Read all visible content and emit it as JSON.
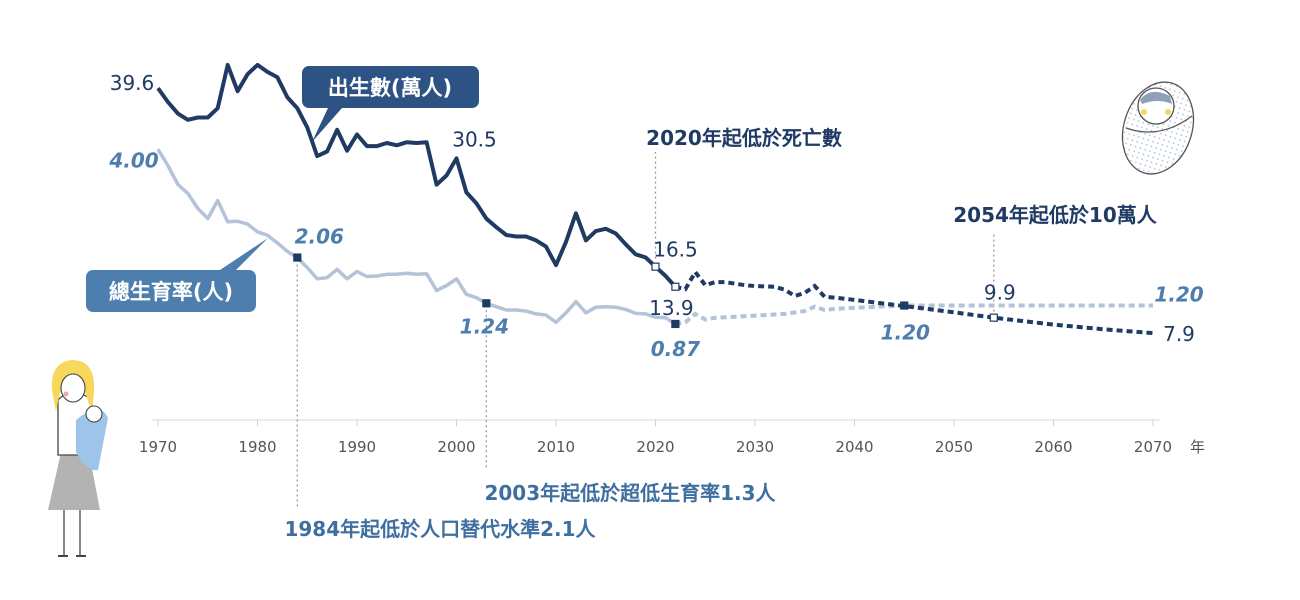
{
  "chart_data": {
    "type": "line",
    "xunit": "年",
    "xlim": [
      1970,
      2070
    ],
    "xticks": [
      1970,
      1980,
      1990,
      2000,
      2010,
      2020,
      2030,
      2040,
      2050,
      2060,
      2070
    ],
    "series": [
      {
        "name": "出生數(萬人)",
        "color": "#1f3a63",
        "actual": [
          [
            1970,
            39.6
          ],
          [
            1971,
            37.8
          ],
          [
            1972,
            36.3
          ],
          [
            1973,
            35.5
          ],
          [
            1974,
            35.8
          ],
          [
            1975,
            35.8
          ],
          [
            1976,
            37.0
          ],
          [
            1977,
            42.6
          ],
          [
            1978,
            39.2
          ],
          [
            1979,
            41.4
          ],
          [
            1980,
            42.6
          ],
          [
            1981,
            41.7
          ],
          [
            1982,
            41.0
          ],
          [
            1983,
            38.4
          ],
          [
            1984,
            37.0
          ],
          [
            1985,
            34.5
          ],
          [
            1986,
            30.8
          ],
          [
            1987,
            31.4
          ],
          [
            1988,
            34.2
          ],
          [
            1989,
            31.5
          ],
          [
            1990,
            33.6
          ],
          [
            1991,
            32.1
          ],
          [
            1992,
            32.1
          ],
          [
            1993,
            32.5
          ],
          [
            1994,
            32.2
          ],
          [
            1995,
            32.6
          ],
          [
            1996,
            32.5
          ],
          [
            1997,
            32.6
          ],
          [
            1998,
            27.1
          ],
          [
            1999,
            28.3
          ],
          [
            2000,
            30.5
          ],
          [
            2001,
            26.1
          ],
          [
            2002,
            24.7
          ],
          [
            2003,
            22.7
          ],
          [
            2004,
            21.6
          ],
          [
            2005,
            20.6
          ],
          [
            2006,
            20.4
          ],
          [
            2007,
            20.4
          ],
          [
            2008,
            19.9
          ],
          [
            2009,
            19.1
          ],
          [
            2010,
            16.7
          ],
          [
            2011,
            19.7
          ],
          [
            2012,
            23.4
          ],
          [
            2013,
            19.9
          ],
          [
            2014,
            21.1
          ],
          [
            2015,
            21.4
          ],
          [
            2016,
            20.8
          ],
          [
            2017,
            19.4
          ],
          [
            2018,
            18.1
          ],
          [
            2019,
            17.7
          ],
          [
            2020,
            16.5
          ],
          [
            2021,
            15.3
          ],
          [
            2022,
            13.9
          ]
        ],
        "projection": [
          [
            2022,
            13.9
          ],
          [
            2023,
            13.6
          ],
          [
            2024,
            15.8
          ],
          [
            2025,
            14.1
          ],
          [
            2026,
            14.5
          ],
          [
            2027,
            14.5
          ],
          [
            2028,
            14.3
          ],
          [
            2029,
            14.1
          ],
          [
            2030,
            14.0
          ],
          [
            2032,
            13.9
          ],
          [
            2033,
            13.5
          ],
          [
            2034,
            12.7
          ],
          [
            2035,
            13.1
          ],
          [
            2036,
            14.0
          ],
          [
            2037,
            12.6
          ],
          [
            2038,
            12.5
          ],
          [
            2040,
            12.2
          ],
          [
            2045,
            11.4
          ],
          [
            2050,
            10.6
          ],
          [
            2054,
            9.9
          ],
          [
            2060,
            9.0
          ],
          [
            2065,
            8.4
          ],
          [
            2070,
            7.9
          ]
        ]
      },
      {
        "name": "總生育率(人)",
        "color": "#b4c3d8",
        "actual": [
          [
            1970,
            4.0
          ],
          [
            1971,
            3.71
          ],
          [
            1972,
            3.37
          ],
          [
            1973,
            3.21
          ],
          [
            1974,
            2.94
          ],
          [
            1975,
            2.76
          ],
          [
            1976,
            3.08
          ],
          [
            1977,
            2.7
          ],
          [
            1978,
            2.71
          ],
          [
            1979,
            2.66
          ],
          [
            1980,
            2.52
          ],
          [
            1981,
            2.46
          ],
          [
            1982,
            2.32
          ],
          [
            1983,
            2.17
          ],
          [
            1984,
            2.06
          ],
          [
            1985,
            1.88
          ],
          [
            1986,
            1.68
          ],
          [
            1987,
            1.7
          ],
          [
            1988,
            1.85
          ],
          [
            1989,
            1.68
          ],
          [
            1990,
            1.81
          ],
          [
            1991,
            1.72
          ],
          [
            1992,
            1.73
          ],
          [
            1993,
            1.76
          ],
          [
            1994,
            1.76
          ],
          [
            1995,
            1.78
          ],
          [
            1996,
            1.76
          ],
          [
            1997,
            1.77
          ],
          [
            1998,
            1.47
          ],
          [
            1999,
            1.56
          ],
          [
            2000,
            1.68
          ],
          [
            2001,
            1.4
          ],
          [
            2002,
            1.34
          ],
          [
            2003,
            1.24
          ],
          [
            2004,
            1.18
          ],
          [
            2005,
            1.12
          ],
          [
            2006,
            1.12
          ],
          [
            2007,
            1.1
          ],
          [
            2008,
            1.05
          ],
          [
            2009,
            1.03
          ],
          [
            2010,
            0.9
          ],
          [
            2011,
            1.07
          ],
          [
            2012,
            1.27
          ],
          [
            2013,
            1.07
          ],
          [
            2014,
            1.17
          ],
          [
            2015,
            1.18
          ],
          [
            2016,
            1.17
          ],
          [
            2017,
            1.13
          ],
          [
            2018,
            1.06
          ],
          [
            2019,
            1.05
          ],
          [
            2020,
            0.99
          ],
          [
            2021,
            0.98
          ],
          [
            2022,
            0.87
          ]
        ],
        "projection": [
          [
            2022,
            0.87
          ],
          [
            2023,
            0.9
          ],
          [
            2024,
            1.05
          ],
          [
            2025,
            0.95
          ],
          [
            2026,
            0.98
          ],
          [
            2028,
            1.0
          ],
          [
            2030,
            1.02
          ],
          [
            2033,
            1.05
          ],
          [
            2035,
            1.1
          ],
          [
            2036,
            1.18
          ],
          [
            2037,
            1.12
          ],
          [
            2038,
            1.14
          ],
          [
            2040,
            1.16
          ],
          [
            2045,
            1.2
          ],
          [
            2050,
            1.2
          ],
          [
            2060,
            1.2
          ],
          [
            2070,
            1.2
          ]
        ]
      }
    ],
    "value_labels": {
      "births": [
        {
          "x": 1970,
          "y": 39.6,
          "text": "39.6"
        },
        {
          "x": 2000,
          "y": 30.5,
          "text": "30.5"
        },
        {
          "x": 2020,
          "y": 16.5,
          "text": "16.5"
        },
        {
          "x": 2022,
          "y": 13.9,
          "text": "13.9"
        },
        {
          "x": 2054,
          "y": 9.9,
          "text": "9.9"
        },
        {
          "x": 2070,
          "y": 7.9,
          "text": "7.9"
        }
      ],
      "tfr": [
        {
          "x": 1970,
          "y": 4.0,
          "text": "4.00"
        },
        {
          "x": 1984,
          "y": 2.06,
          "text": "2.06"
        },
        {
          "x": 2003,
          "y": 1.24,
          "text": "1.24"
        },
        {
          "x": 2022,
          "y": 0.87,
          "text": "0.87"
        },
        {
          "x": 2045,
          "y": 1.2,
          "text": "1.20"
        },
        {
          "x": 2070,
          "y": 1.2,
          "text": "1.20"
        }
      ]
    },
    "annotations": [
      {
        "x": 2020,
        "text": "2020年起低於死亡數"
      },
      {
        "x": 2054,
        "text": "2054年起低於10萬人"
      },
      {
        "x": 2003,
        "text": "2003年起低於超低生育率1.3人"
      },
      {
        "x": 1984,
        "text": "1984年起低於人口替代水準2.1人"
      }
    ]
  }
}
